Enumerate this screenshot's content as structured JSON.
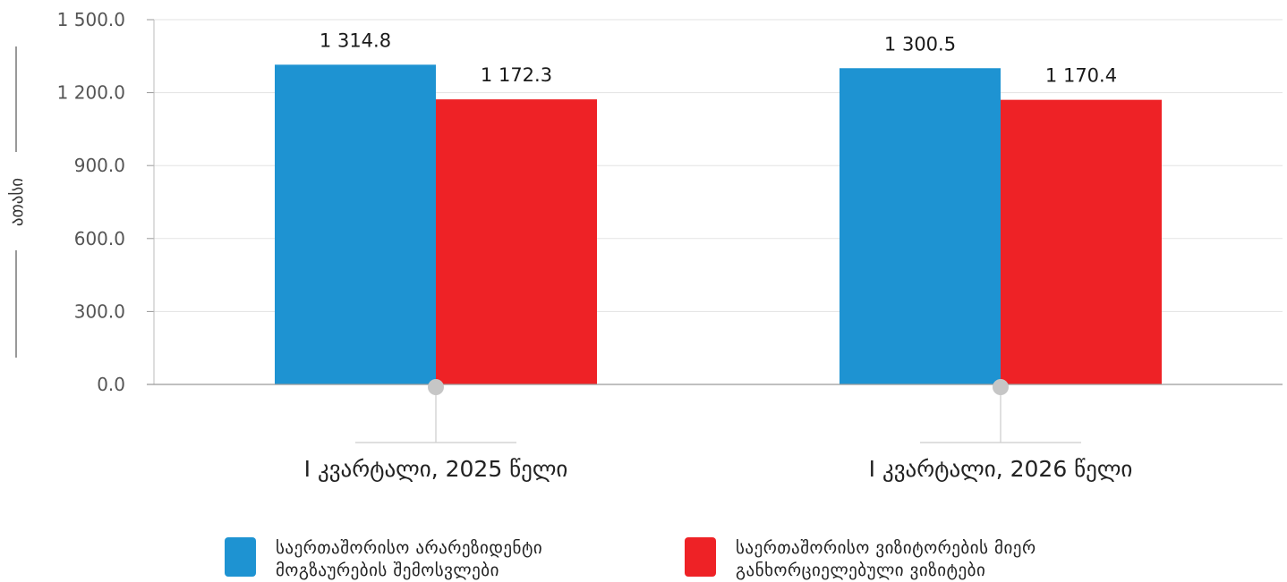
{
  "chart_data": {
    "type": "bar",
    "categories": [
      "I კვარტალი, 2025 წელი",
      "I კვარტალი, 2026 წელი"
    ],
    "series": [
      {
        "name": "საერთაშორისო არარეზიდენტი მოგზაურების შემოსვლები",
        "values": [
          1314.8,
          1300.5
        ],
        "color": "#1e93d2"
      },
      {
        "name": "საერთაშორისო ვიზიტორების მიერ განხორციელებული ვიზიტები",
        "values": [
          1172.3,
          1170.4
        ],
        "color": "#ee2226"
      }
    ],
    "value_labels": [
      [
        "1 314.8",
        "1 300.5"
      ],
      [
        "1 172.3",
        "1 170.4"
      ]
    ],
    "ylabel": "ათასი",
    "ylim": [
      0,
      1500
    ],
    "yticks": [
      0,
      300,
      600,
      900,
      1200,
      1500
    ],
    "ytick_labels": [
      "0.0",
      "300.0",
      "600.0",
      "900.0",
      "1 200.0",
      "1 500.0"
    ],
    "grid": true,
    "legend_position": "bottom"
  }
}
